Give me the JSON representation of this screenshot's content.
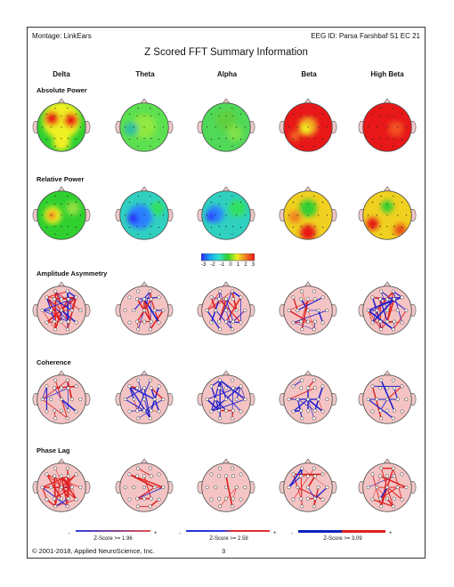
{
  "header": {
    "montage": "Montage:  LinkEars",
    "eeg_id": "EEG ID:  Parsa Farshbaf S1 EC 21"
  },
  "title": "Z Scored FFT Summary Information",
  "bands": [
    "Delta",
    "Theta",
    "Alpha",
    "Beta",
    "High Beta"
  ],
  "rows": [
    {
      "label": "Absolute Power",
      "type": "power"
    },
    {
      "label": "Relative Power",
      "type": "power"
    },
    {
      "label": "Amplitude Asymmetry",
      "type": "connect"
    },
    {
      "label": "Coherence",
      "type": "connect"
    },
    {
      "label": "Phase Lag",
      "type": "connect"
    }
  ],
  "colorbar": {
    "ticks": [
      "-3",
      "-2",
      "-1",
      "0",
      "1",
      "2",
      "3"
    ],
    "colors": [
      "#2a2aff",
      "#18a8f0",
      "#30e0d0",
      "#30d030",
      "#f0f020",
      "#f08020",
      "#e81818"
    ]
  },
  "legends": [
    {
      "label": "Z-Score >= 1.96",
      "minus": "-",
      "plus": "+"
    },
    {
      "label": "Z-Score >= 2.58",
      "minus": "-",
      "plus": "+"
    },
    {
      "label": "Z-Score >= 3.09",
      "minus": "-",
      "plus": "+"
    }
  ],
  "footer": {
    "copyright": "© 2001-2018, Applied NeuroScience, Inc.",
    "page": "3"
  }
}
